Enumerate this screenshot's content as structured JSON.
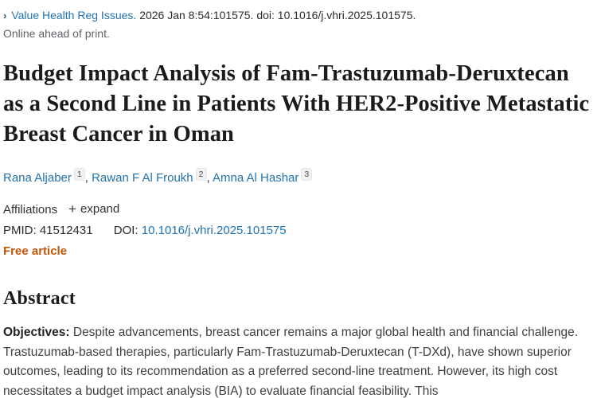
{
  "journal": {
    "chevron_glyph": "›",
    "name": "Value Health Reg Issues.",
    "citation": "2026 Jan 8:54:101575. doi: 10.1016/j.vhri.2025.101575.",
    "online_ahead": "Online ahead of print."
  },
  "title": "Budget Impact Analysis of Fam-Trastuzumab-Deruxtecan as a Second Line in Patients With HER2-Positive Metastatic Breast Cancer in Oman",
  "authors": [
    {
      "name": "Rana Aljaber",
      "sup": "1",
      "sep": ", "
    },
    {
      "name": "Rawan F Al Froukh",
      "sup": "2",
      "sep": ", "
    },
    {
      "name": "Amna Al Hashar",
      "sup": "3",
      "sep": ""
    }
  ],
  "affiliations": {
    "label": "Affiliations",
    "expand_icon": "+",
    "expand_label": "expand"
  },
  "identifiers": {
    "pmid_label": "PMID:",
    "pmid_value": "41512431",
    "doi_label": "DOI:",
    "doi_value": "10.1016/j.vhri.2025.101575"
  },
  "free_article_label": "Free article",
  "abstract": {
    "heading": "Abstract",
    "objectives_label": "Objectives:",
    "objectives_text": " Despite advancements, breast cancer remains a major global health and financial challenge. Trastuzumab-based therapies, particularly Fam-Trastuzumab-Deruxtecan (T-DXd), have shown superior outcomes, leading to its recommendation as a preferred second-line treatment. However, its high cost necessitates a budget impact analysis (BIA) to evaluate financial feasibility. This"
  },
  "colors": {
    "link_blue": "#2073b0",
    "chevron_blue": "#1b5c93",
    "free_article_orange": "#c25608",
    "muted_gray": "#5f6368"
  }
}
